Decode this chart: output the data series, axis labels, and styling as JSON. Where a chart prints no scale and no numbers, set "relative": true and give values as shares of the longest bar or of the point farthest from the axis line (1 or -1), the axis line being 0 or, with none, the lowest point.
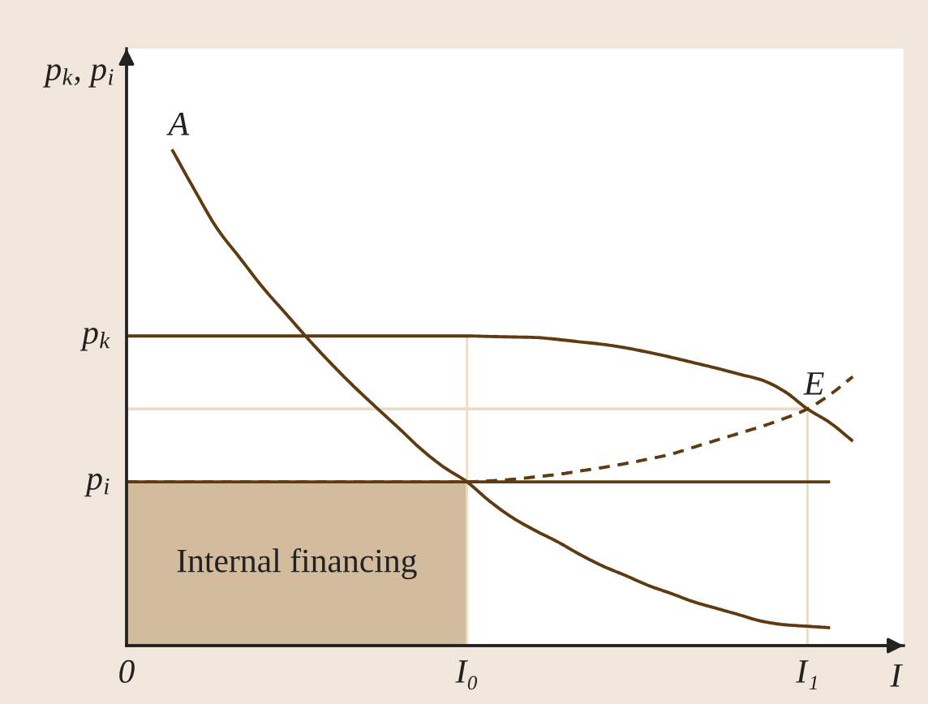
{
  "chart_data": {
    "type": "line",
    "relative": true,
    "xlabel": "I",
    "ylabel": "p$_{k}$, p$_{i}$",
    "tick_labels": "x",
    "line_style": "solid",
    "categories": [
      "0",
      null,
      null,
      null,
      null,
      null,
      null,
      null,
      null,
      null,
      null,
      null,
      null,
      null,
      null,
      "I₀",
      null,
      null,
      null,
      null,
      null,
      null,
      null,
      null,
      null,
      null,
      null,
      null,
      null,
      null,
      "I₁",
      null,
      null
    ],
    "series": [
      {
        "type": "area",
        "name": "Internal financing",
        "color": "#d3bb9d",
        "values": [
          0.33,
          0.33,
          0.33,
          0.33,
          0.33,
          0.33,
          0.33,
          0.33,
          0.33,
          0.33,
          0.33,
          0.33,
          0.33,
          0.33,
          0.33,
          0.33,
          null,
          null,
          null,
          null,
          null,
          null,
          null,
          null,
          null,
          null,
          null,
          null,
          null,
          null,
          null,
          null,
          null
        ]
      },
      {
        "type": "bar",
        "color": "#ecdcc6",
        "values": [
          null,
          null,
          null,
          null,
          null,
          null,
          null,
          null,
          null,
          null,
          null,
          null,
          null,
          null,
          null,
          0.624,
          null,
          null,
          null,
          null,
          null,
          null,
          null,
          null,
          null,
          null,
          null,
          null,
          null,
          null,
          0.477,
          null,
          null
        ]
      },
      {
        "color": "#ecdcc6",
        "values": [
          0.477,
          0.477,
          0.477,
          0.477,
          0.477,
          0.477,
          0.477,
          0.477,
          0.477,
          0.477,
          0.477,
          0.477,
          0.477,
          0.477,
          0.477,
          0.477,
          0.477,
          0.477,
          0.477,
          0.477,
          0.477,
          0.477,
          0.477,
          0.477,
          0.477,
          0.477,
          0.477,
          0.477,
          0.477,
          0.477,
          0.477,
          null,
          null
        ]
      },
      {
        "name": "p$_{i}$",
        "color": "#603a10",
        "values": [
          0.33,
          0.33,
          0.33,
          0.33,
          0.33,
          0.33,
          0.33,
          0.33,
          0.33,
          0.33,
          0.33,
          0.33,
          0.33,
          0.33,
          0.33,
          0.33,
          0.33,
          0.33,
          0.33,
          0.33,
          0.33,
          0.33,
          0.33,
          0.33,
          0.33,
          0.33,
          0.33,
          0.33,
          0.33,
          0.33,
          0.33,
          0.33,
          null
        ]
      },
      {
        "name": "A",
        "color": "#603a10",
        "values": [
          null,
          null,
          1.0,
          0.918,
          0.84,
          0.781,
          0.722,
          0.67,
          0.618,
          0.569,
          0.523,
          0.48,
          0.438,
          0.395,
          0.359,
          0.33,
          0.291,
          0.258,
          0.232,
          0.209,
          0.183,
          0.16,
          0.141,
          0.121,
          0.105,
          0.088,
          0.075,
          0.062,
          0.049,
          0.042,
          0.039,
          0.036,
          null
        ]
      },
      {
        "name": "p$_{k}$",
        "color": "#603a10",
        "values": [
          0.624,
          0.624,
          0.624,
          0.624,
          0.624,
          0.624,
          0.624,
          0.624,
          0.624,
          0.624,
          0.624,
          0.624,
          0.624,
          0.624,
          0.624,
          0.624,
          0.623,
          0.622,
          0.621,
          0.617,
          0.612,
          0.607,
          0.6,
          0.591,
          0.581,
          0.57,
          0.559,
          0.547,
          0.535,
          0.512,
          0.477,
          0.449,
          0.412
        ]
      },
      {
        "color": "#603a10",
        "line_style": "dashed",
        "values": [
          0.33,
          0.33,
          0.33,
          0.33,
          0.33,
          0.33,
          0.33,
          0.33,
          0.33,
          0.33,
          0.33,
          0.33,
          0.33,
          0.33,
          0.33,
          0.33,
          0.332,
          0.335,
          0.34,
          0.345,
          0.352,
          0.359,
          0.367,
          0.376,
          0.386,
          0.4,
          0.414,
          0.428,
          0.442,
          0.458,
          0.477,
          0.506,
          0.542
        ]
      }
    ],
    "annotations": [
      {
        "text": "E",
        "x": "I₁",
        "y": 0.477
      }
    ]
  }
}
